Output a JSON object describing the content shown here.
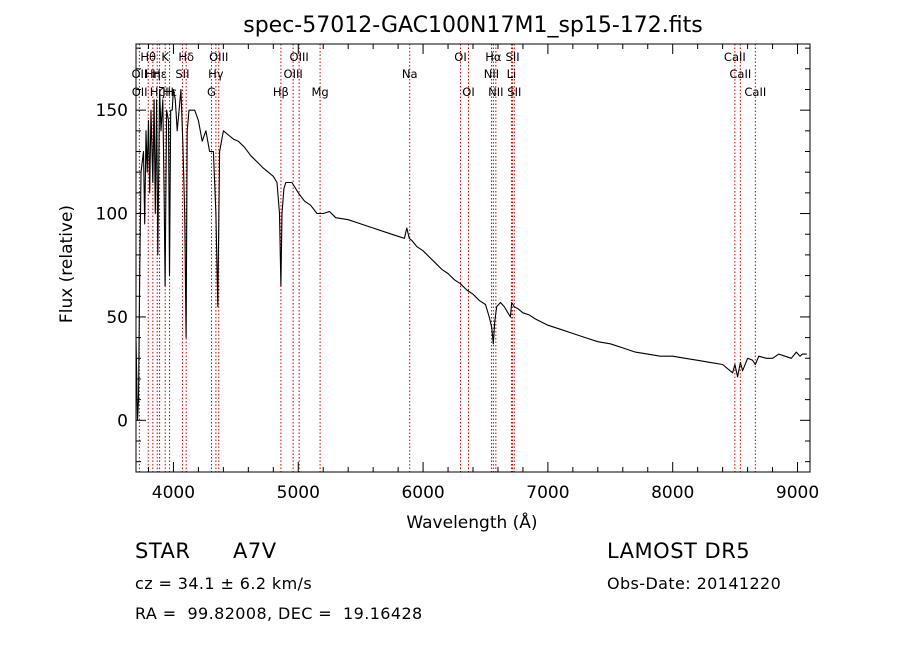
{
  "chart_data": {
    "type": "line",
    "title": "spec-57012-GAC100N17M1_sp15-172.fits",
    "xlabel": "Wavelength (Å)",
    "ylabel": "Flux (relative)",
    "xlim": [
      3700,
      9100
    ],
    "ylim": [
      -25,
      182
    ],
    "xticks": [
      4000,
      5000,
      6000,
      7000,
      8000,
      9000
    ],
    "yticks": [
      0,
      50,
      100,
      150
    ],
    "grid": false,
    "line_color": "#000000",
    "marker_color": "#cc0000",
    "series": [
      {
        "x": [
          3700,
          3712,
          3720,
          3730,
          3740,
          3760,
          3770,
          3780,
          3790,
          3800,
          3810,
          3820,
          3835,
          3845,
          3855,
          3865,
          3875,
          3889,
          3900,
          3915,
          3925,
          3933,
          3945,
          3960,
          3968,
          3978,
          3990,
          4000,
          4015,
          4030,
          4045,
          4060,
          4075,
          4090,
          4101,
          4110,
          4125,
          4145,
          4170,
          4200,
          4230,
          4260,
          4290,
          4320,
          4340,
          4355,
          4370,
          4400,
          4440,
          4480,
          4520,
          4570,
          4620,
          4670,
          4720,
          4760,
          4800,
          4830,
          4850,
          4861,
          4870,
          4885,
          4900,
          4950,
          5000,
          5050,
          5100,
          5150,
          5200,
          5250,
          5300,
          5400,
          5500,
          5600,
          5700,
          5800,
          5850,
          5870,
          5890,
          5910,
          5950,
          6000,
          6050,
          6100,
          6150,
          6200,
          6250,
          6300,
          6350,
          6400,
          6450,
          6500,
          6530,
          6550,
          6563,
          6575,
          6590,
          6620,
          6650,
          6680,
          6700,
          6710,
          6730,
          6760,
          6800,
          6850,
          6900,
          7000,
          7100,
          7200,
          7300,
          7400,
          7500,
          7600,
          7700,
          7800,
          7900,
          8000,
          8100,
          8200,
          8300,
          8400,
          8480,
          8498,
          8520,
          8542,
          8560,
          8600,
          8640,
          8662,
          8690,
          8750,
          8800,
          8850,
          8900,
          8950,
          8990,
          9020,
          9040,
          9060,
          9075
        ],
        "y": [
          40,
          0,
          10,
          70,
          120,
          130,
          95,
          140,
          120,
          145,
          110,
          150,
          115,
          155,
          100,
          155,
          80,
          160,
          140,
          155,
          110,
          65,
          150,
          145,
          70,
          150,
          150,
          160,
          155,
          140,
          150,
          160,
          135,
          100,
          40,
          140,
          150,
          150,
          150,
          145,
          135,
          140,
          130,
          130,
          100,
          55,
          130,
          140,
          138,
          136,
          135,
          132,
          128,
          125,
          122,
          120,
          118,
          115,
          100,
          65,
          100,
          112,
          115,
          115,
          110,
          106,
          104,
          100,
          100,
          101,
          98,
          97,
          95,
          93,
          91,
          89,
          88,
          93,
          88,
          87,
          84,
          82,
          79,
          76,
          73,
          71,
          68,
          66,
          63,
          61,
          58,
          56,
          50,
          45,
          37,
          48,
          55,
          57,
          55,
          52,
          50,
          57,
          55,
          54,
          52,
          51,
          49,
          46,
          44,
          42,
          40,
          38,
          37,
          35,
          33,
          32,
          31,
          31,
          30,
          29,
          28,
          27,
          23,
          27,
          21,
          28,
          24,
          30,
          29,
          27,
          31,
          30,
          30,
          32,
          31,
          30,
          33,
          31,
          32,
          32,
          32
        ]
      }
    ],
    "annotations": [
      {
        "label": "Hθ",
        "x": 3798,
        "row": 0
      },
      {
        "label": "K",
        "x": 3934,
        "row": 0
      },
      {
        "label": "Hδ",
        "x": 4102,
        "row": 0
      },
      {
        "label": "OIII",
        "x": 4363,
        "row": 0
      },
      {
        "label": "OIII",
        "x": 5007,
        "row": 0
      },
      {
        "label": "OI",
        "x": 6300,
        "row": 0
      },
      {
        "label": "Hα",
        "x": 6563,
        "row": 0
      },
      {
        "label": "SII",
        "x": 6717,
        "row": 0
      },
      {
        "label": "CaII",
        "x": 8498,
        "row": 0
      },
      {
        "label": "OII",
        "x": 3727,
        "row": 1
      },
      {
        "label": "Hη",
        "x": 3835,
        "row": 1
      },
      {
        "label": "Hε",
        "x": 3889,
        "row": 1
      },
      {
        "label": "SII",
        "x": 4072,
        "row": 1
      },
      {
        "label": "Hγ",
        "x": 4340,
        "row": 1
      },
      {
        "label": "OIII",
        "x": 4959,
        "row": 1
      },
      {
        "label": "Na",
        "x": 5893,
        "row": 1
      },
      {
        "label": "NII",
        "x": 6548,
        "row": 1
      },
      {
        "label": "Li",
        "x": 6708,
        "row": 1
      },
      {
        "label": "CaII",
        "x": 8542,
        "row": 1
      },
      {
        "label": "OII",
        "x": 3729,
        "row": 2
      },
      {
        "label": "Hζ",
        "x": 3870,
        "row": 2
      },
      {
        "label": "H",
        "x": 3969,
        "row": 2
      },
      {
        "label": "Hε",
        "x": 3970,
        "row": 2
      },
      {
        "label": "G",
        "x": 4305,
        "row": 2
      },
      {
        "label": "Hβ",
        "x": 4861,
        "row": 2
      },
      {
        "label": "Mg",
        "x": 5175,
        "row": 2
      },
      {
        "label": "OI",
        "x": 6364,
        "row": 2
      },
      {
        "label": "NII",
        "x": 6583,
        "row": 2
      },
      {
        "label": "SII",
        "x": 6731,
        "row": 2
      },
      {
        "label": "CaII",
        "x": 8662,
        "row": 2
      }
    ],
    "line_markers": [
      3727,
      3798,
      3835,
      3870,
      3889,
      3934,
      3969,
      4072,
      4102,
      4305,
      4340,
      4363,
      4861,
      4959,
      5007,
      5175,
      5893,
      6300,
      6364,
      6548,
      6563,
      6583,
      6708,
      6717,
      6731,
      8498,
      8542,
      8662
    ]
  },
  "info": {
    "object_class": "STAR",
    "subclass": "A7V",
    "survey": "LAMOST DR5",
    "redshift": "cz = 34.1 ± 6.2 km/s",
    "obs_date": "Obs-Date: 20141220",
    "coords": "RA =  99.82008, DEC =  19.16428"
  }
}
